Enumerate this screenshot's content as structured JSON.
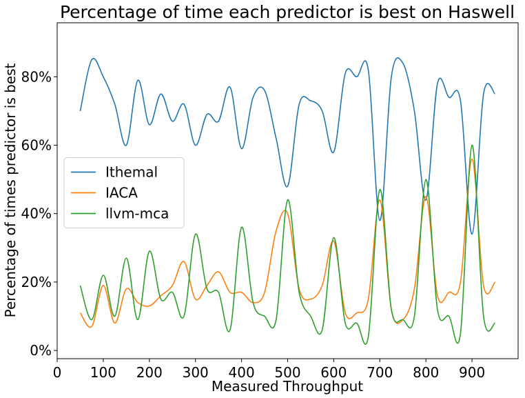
{
  "chart_data": {
    "type": "line",
    "title": "Percentage of time each predictor is best on Haswell",
    "x_label": "Measured Throughput",
    "y_label": "Percentage of times predictor is best",
    "x": [
      50,
      75,
      100,
      125,
      150,
      175,
      200,
      225,
      250,
      275,
      300,
      325,
      350,
      375,
      400,
      425,
      450,
      475,
      500,
      525,
      550,
      575,
      600,
      625,
      650,
      675,
      700,
      725,
      750,
      775,
      800,
      825,
      850,
      875,
      900,
      925,
      950
    ],
    "series": [
      {
        "name": "Ithemal",
        "color": "#1f77b4",
        "values": [
          70,
          85,
          80,
          72,
          60,
          79,
          66,
          75,
          67,
          72,
          60,
          69,
          67,
          77,
          59,
          74,
          76,
          62,
          48,
          72,
          73,
          70,
          58,
          81,
          80,
          82,
          38,
          80,
          84,
          70,
          44,
          78,
          74,
          73,
          34,
          75,
          75
        ]
      },
      {
        "name": "IACA",
        "color": "#ff7f0e",
        "values": [
          11,
          7,
          19,
          8,
          18,
          14,
          13,
          16,
          19,
          26,
          15,
          19,
          23,
          17,
          17,
          14,
          17,
          35,
          40,
          18,
          15,
          19,
          32,
          11,
          11,
          15,
          44,
          12,
          9,
          18,
          45,
          16,
          17,
          20,
          56,
          19,
          20
        ]
      },
      {
        "name": "llvm-mca",
        "color": "#2ca02c",
        "values": [
          19,
          9,
          22,
          10,
          27,
          9,
          29,
          15,
          17,
          10,
          34,
          18,
          17,
          6,
          36,
          14,
          10,
          9,
          44,
          17,
          10,
          6,
          33,
          8,
          8,
          4,
          47,
          12,
          9,
          10,
          50,
          12,
          10,
          5,
          60,
          10,
          8
        ]
      }
    ],
    "xlim": [
      0,
      1000
    ],
    "xticks": [
      0,
      100,
      200,
      300,
      400,
      500,
      600,
      700,
      800,
      900
    ],
    "ylim": [
      -2.4,
      95.8
    ],
    "yticks": [
      {
        "value": 0,
        "label": "0%"
      },
      {
        "value": 20,
        "label": "20%"
      },
      {
        "value": 40,
        "label": "40%"
      },
      {
        "value": 60,
        "label": "60%"
      },
      {
        "value": 80,
        "label": "80%"
      }
    ],
    "legend": "center left"
  }
}
